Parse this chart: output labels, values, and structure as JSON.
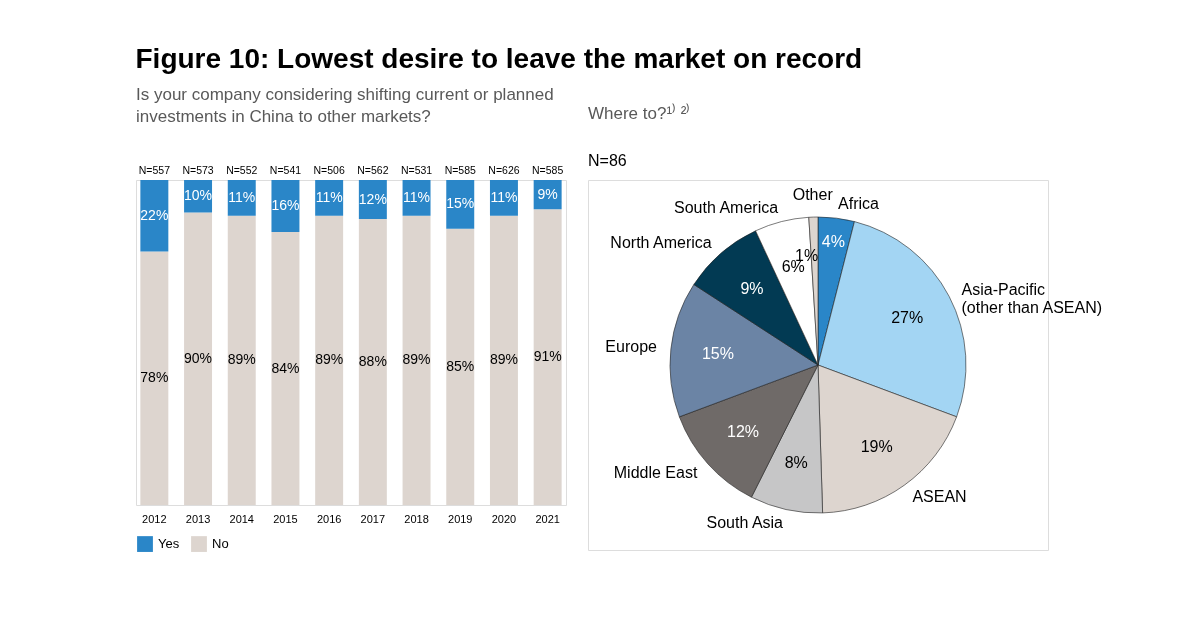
{
  "chart_data": [
    {
      "type": "bar",
      "title": "Figure 10: Lowest desire to leave the market on record",
      "subtitle": "Is your company considering shifting current or planned investments in China to other markets?",
      "categories": [
        "2012",
        "2013",
        "2014",
        "2015",
        "2016",
        "2017",
        "2018",
        "2019",
        "2020",
        "2021"
      ],
      "stacked": true,
      "legend": "bottom left",
      "tick_labels": "x",
      "series": [
        {
          "name": "No",
          "color": "#ddd5cf",
          "values": [
            78,
            90,
            89,
            84,
            89,
            88,
            89,
            85,
            89,
            91
          ],
          "value_labels": [
            "78%",
            "90%",
            "89%",
            "84%",
            "89%",
            "88%",
            "89%",
            "85%",
            "89%",
            "91%"
          ]
        },
        {
          "name": "Yes",
          "color": "#2a86c8",
          "values": [
            22,
            10,
            11,
            16,
            11,
            12,
            11,
            15,
            11,
            9
          ],
          "value_labels": [
            "22%",
            "10%",
            "11%",
            "16%",
            "11%",
            "12%",
            "11%",
            "15%",
            "11%",
            "9%"
          ]
        }
      ],
      "annotations": [
        {
          "text": "N=557",
          "x": "2012",
          "y": 100
        },
        {
          "text": "N=573",
          "x": "2013",
          "y": 100
        },
        {
          "text": "N=552",
          "x": "2014",
          "y": 100
        },
        {
          "text": "N=541",
          "x": "2015",
          "y": 100
        },
        {
          "text": "N=506",
          "x": "2016",
          "y": 100
        },
        {
          "text": "N=562",
          "x": "2017",
          "y": 100
        },
        {
          "text": "N=531",
          "x": "2018",
          "y": 100
        },
        {
          "text": "N=585",
          "x": "2019",
          "y": 100
        },
        {
          "text": "N=626",
          "x": "2020",
          "y": 100
        },
        {
          "text": "N=585",
          "x": "2021",
          "y": 100
        }
      ]
    },
    {
      "type": "pie",
      "title": "Where to?¹⁾ ²⁾",
      "subtitle": "N=86",
      "legend": false,
      "categories": [
        "Africa",
        "Asia-Pacific\n(other than ASEAN)",
        "ASEAN",
        "South Asia",
        "Middle East",
        "Europe",
        "North America",
        "South America",
        "Other"
      ],
      "values": [
        4,
        27,
        19,
        8,
        12,
        15,
        9,
        6,
        1
      ],
      "value_labels": [
        "4%",
        "27%",
        "19%",
        "8%",
        "12%",
        "15%",
        "9%",
        "6%",
        "1%"
      ],
      "colors": [
        "#2a86c8",
        "#a3d5f3",
        "#ddd5cf",
        "#c6c6c7",
        "#6f6a68",
        "#6b84a5",
        "#023a53",
        "#ffffff",
        "#ddd5cf"
      ]
    }
  ]
}
